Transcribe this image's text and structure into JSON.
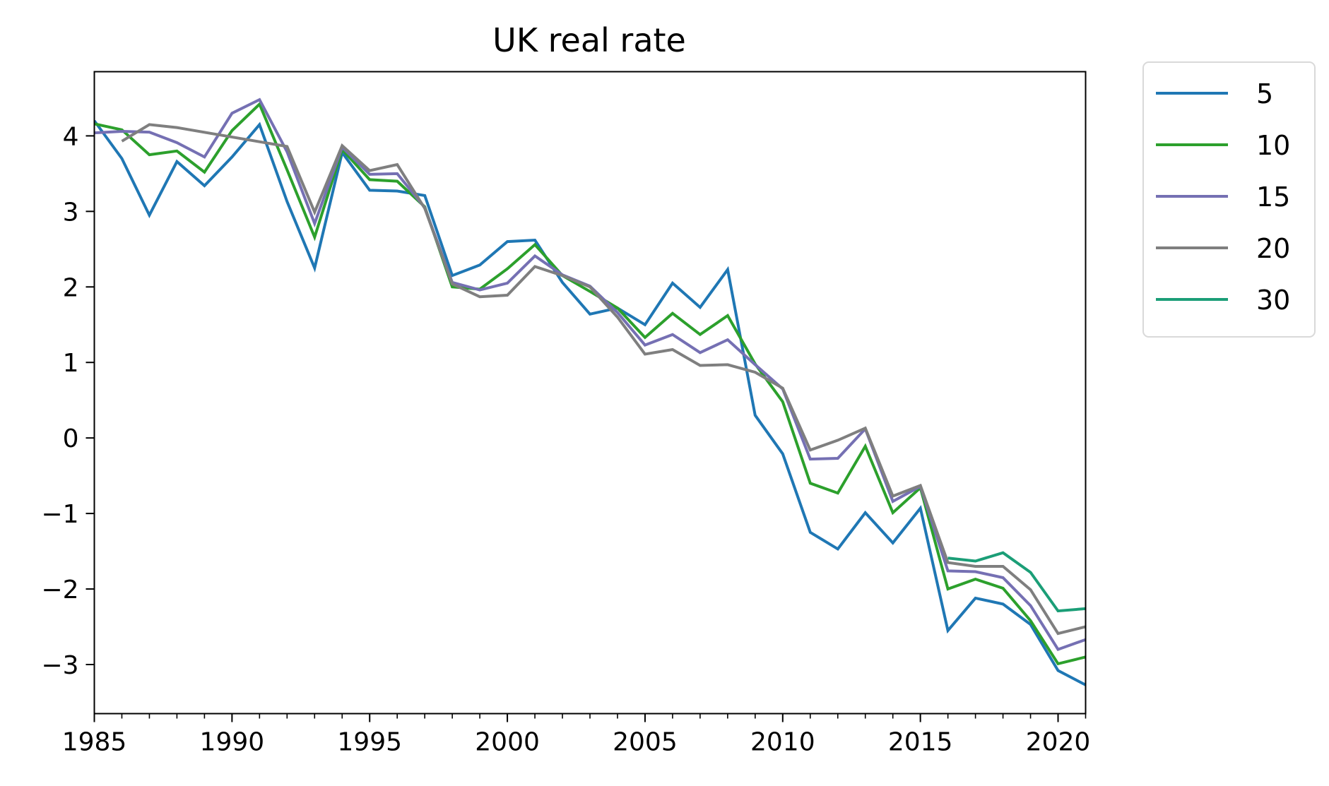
{
  "chart_data": {
    "type": "line",
    "title": "UK real rate",
    "xlabel": "",
    "ylabel": "",
    "xlim": [
      1985,
      2021
    ],
    "ylim": [
      -3.65,
      4.85
    ],
    "x_ticks": [
      "1985",
      "1990",
      "1995",
      "2000",
      "2005",
      "2010",
      "2015",
      "2020"
    ],
    "x_minor_step": 1,
    "y_ticks": [
      {
        "value": 4,
        "label": "4"
      },
      {
        "value": 3,
        "label": "3"
      },
      {
        "value": 2,
        "label": "2"
      },
      {
        "value": 1,
        "label": "1"
      },
      {
        "value": 0,
        "label": "0"
      },
      {
        "value": -1,
        "label": "−1"
      },
      {
        "value": -2,
        "label": "−2"
      },
      {
        "value": -3,
        "label": "−3"
      }
    ],
    "grid": false,
    "legend_position": "outside-right-top",
    "series": [
      {
        "name": "5",
        "color": "#1f77b4",
        "x": [
          1985,
          1986,
          1987,
          1988,
          1989,
          1990,
          1991,
          1992,
          1993,
          1994,
          1995,
          1996,
          1997,
          1998,
          1999,
          2000,
          2001,
          2002,
          2003,
          2004,
          2005,
          2006,
          2007,
          2008,
          2009,
          2010,
          2011,
          2012,
          2013,
          2014,
          2015,
          2016,
          2017,
          2018,
          2019,
          2020,
          2021
        ],
        "y": [
          4.2,
          3.7,
          2.95,
          3.66,
          3.34,
          3.72,
          4.15,
          3.13,
          2.25,
          3.78,
          3.28,
          3.27,
          3.21,
          2.15,
          2.29,
          2.6,
          2.62,
          2.06,
          1.64,
          1.72,
          1.5,
          2.05,
          1.73,
          2.23,
          0.3,
          -0.21,
          -1.25,
          -1.47,
          -0.99,
          -1.39,
          -0.93,
          -2.55,
          -2.12,
          -2.2,
          -2.47,
          -3.08,
          -3.27
        ]
      },
      {
        "name": "10",
        "color": "#2ca02c",
        "x": [
          1985,
          1986,
          1987,
          1988,
          1989,
          1990,
          1991,
          1992,
          1993,
          1994,
          1995,
          1996,
          1997,
          1998,
          1999,
          2000,
          2001,
          2002,
          2003,
          2004,
          2005,
          2006,
          2007,
          2008,
          2009,
          2010,
          2011,
          2012,
          2013,
          2014,
          2015,
          2016,
          2017,
          2018,
          2019,
          2020,
          2021
        ],
        "y": [
          4.16,
          4.08,
          3.75,
          3.8,
          3.52,
          4.07,
          4.42,
          3.55,
          2.66,
          3.82,
          3.42,
          3.4,
          3.06,
          2.0,
          1.97,
          2.24,
          2.56,
          2.15,
          1.94,
          1.72,
          1.33,
          1.65,
          1.37,
          1.62,
          0.98,
          0.48,
          -0.6,
          -0.73,
          -0.11,
          -0.99,
          -0.66,
          -2.0,
          -1.87,
          -1.99,
          -2.42,
          -2.99,
          -2.9
        ]
      },
      {
        "name": "15",
        "color": "#7570b3",
        "x": [
          1985,
          1986,
          1987,
          1988,
          1989,
          1990,
          1991,
          1992,
          1993,
          1994,
          1995,
          1996,
          1997,
          1998,
          1999,
          2000,
          2001,
          2002,
          2003,
          2004,
          2005,
          2006,
          2007,
          2008,
          2009,
          2010,
          2011,
          2012,
          2013,
          2014,
          2015,
          2016,
          2017,
          2018,
          2019,
          2020,
          2021
        ],
        "y": [
          4.04,
          4.06,
          4.05,
          3.91,
          3.72,
          4.3,
          4.48,
          3.79,
          2.84,
          3.85,
          3.49,
          3.5,
          3.05,
          2.06,
          1.96,
          2.05,
          2.41,
          2.16,
          2.01,
          1.66,
          1.23,
          1.37,
          1.13,
          1.3,
          0.97,
          0.65,
          -0.28,
          -0.27,
          0.12,
          -0.84,
          -0.64,
          -1.76,
          -1.77,
          -1.85,
          -2.22,
          -2.8,
          -2.67
        ]
      },
      {
        "name": "20",
        "color": "#7f7f7f",
        "x": [
          1986,
          1987,
          1988,
          1992,
          1993,
          1994,
          1995,
          1996,
          1997,
          1998,
          1999,
          2000,
          2001,
          2002,
          2003,
          2004,
          2005,
          2006,
          2007,
          2008,
          2009,
          2010,
          2011,
          2012,
          2013,
          2014,
          2015,
          2016,
          2017,
          2018,
          2019,
          2020,
          2021
        ],
        "y": [
          3.93,
          4.15,
          4.11,
          3.86,
          2.99,
          3.87,
          3.54,
          3.62,
          3.04,
          2.04,
          1.87,
          1.89,
          2.27,
          2.15,
          2.0,
          1.6,
          1.11,
          1.17,
          0.96,
          0.97,
          0.87,
          0.66,
          -0.16,
          -0.03,
          0.13,
          -0.77,
          -0.63,
          -1.65,
          -1.7,
          -1.7,
          -2.01,
          -2.59,
          -2.5
        ]
      },
      {
        "name": "30",
        "color": "#1b9e77",
        "x": [
          2016,
          2017,
          2018,
          2019,
          2020,
          2021
        ],
        "y": [
          -1.59,
          -1.63,
          -1.52,
          -1.78,
          -2.29,
          -2.26
        ]
      }
    ]
  }
}
